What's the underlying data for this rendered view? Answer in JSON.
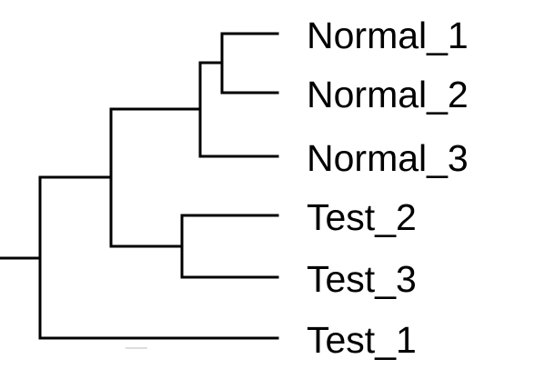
{
  "leaves": [
    {
      "label": "Normal_1"
    },
    {
      "label": "Normal_2"
    },
    {
      "label": "Normal_3"
    },
    {
      "label": "Test_2"
    },
    {
      "label": "Test_3"
    },
    {
      "label": "Test_1"
    }
  ]
}
